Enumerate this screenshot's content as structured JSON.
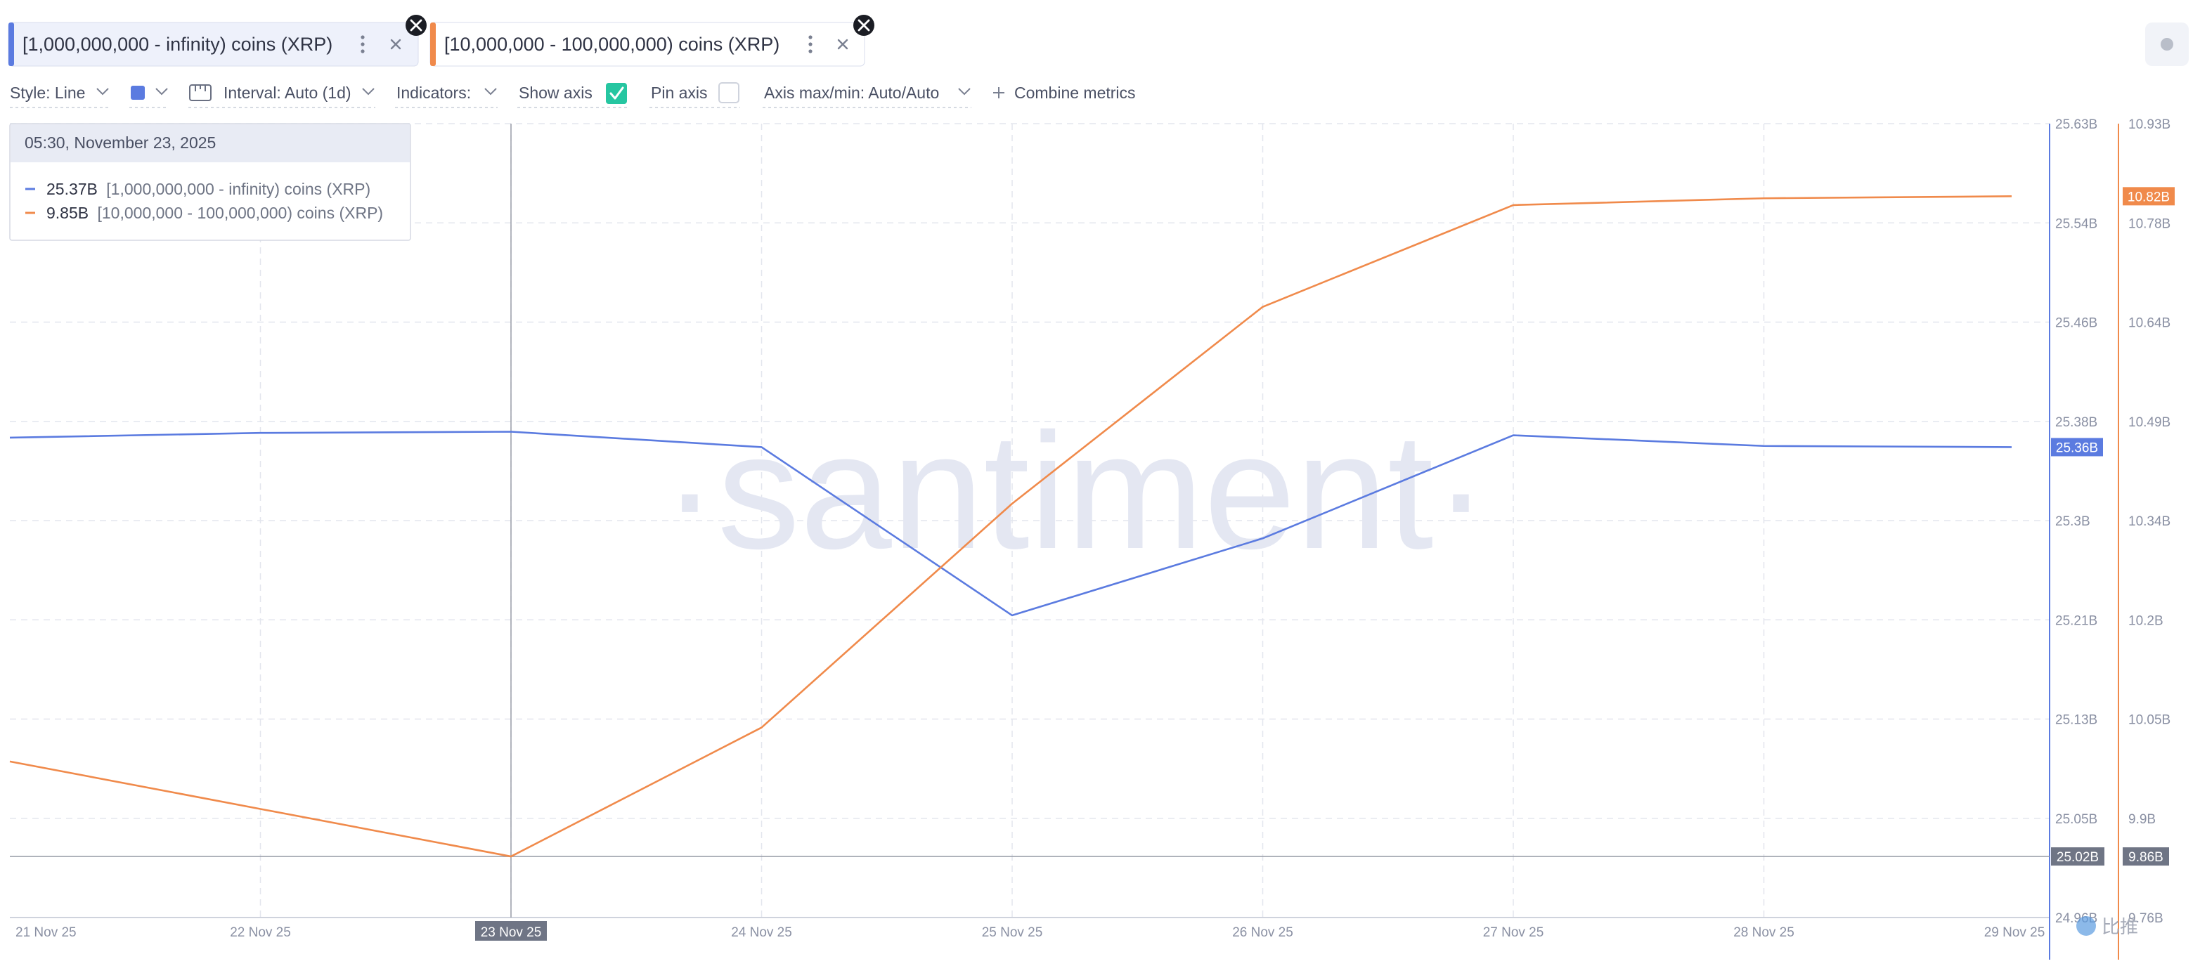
{
  "colors": {
    "series_1": "#5b7be0",
    "series_2": "#f08a4b",
    "watermark": "#e4e7f2",
    "grid": "#e3e6ee",
    "crosshair": "#9a9ea8",
    "label_dark": "#6f7585",
    "check_green": "#26c6a1"
  },
  "metric_chips": [
    {
      "label": "[1,000,000,000 - infinity) coins (XRP)",
      "more_icon": "kebab-icon",
      "close_icon": "close-icon"
    },
    {
      "label": "[10,000,000 - 100,000,000) coins (XRP)",
      "more_icon": "kebab-icon",
      "close_icon": "close-icon"
    }
  ],
  "toolbar": {
    "style_label": "Style: Line",
    "interval_label": "Interval: Auto (1d)",
    "indicators_label": "Indicators:",
    "show_axis_label": "Show axis",
    "show_axis_checked": true,
    "pin_axis_label": "Pin axis",
    "pin_axis_checked": false,
    "axis_maxmin_label": "Axis max/min: Auto/Auto",
    "combine_label": "Combine metrics",
    "combine_icon": "plus-icon"
  },
  "tooltip": {
    "date": "05:30, November 23, 2025",
    "rows": [
      {
        "value": "25.37B",
        "name": "[1,000,000,000 - infinity) coins (XRP)"
      },
      {
        "value": "9.85B",
        "name": "[10,000,000 - 100,000,000) coins (XRP)"
      }
    ]
  },
  "watermark": "·santiment·",
  "chart_data": {
    "type": "line",
    "x": [
      "21 Nov 25",
      "22 Nov 25",
      "23 Nov 25",
      "24 Nov 25",
      "25 Nov 25",
      "26 Nov 25",
      "27 Nov 25",
      "28 Nov 25",
      "29 Nov 25"
    ],
    "series": [
      {
        "name": "[1,000,000,000 - infinity) coins (XRP)",
        "axis": "left",
        "values": [
          25.365,
          25.369,
          25.37,
          25.357,
          25.215,
          25.28,
          25.367,
          25.358,
          25.357
        ]
      },
      {
        "name": "[10,000,000 - 100,000,000) coins (XRP)",
        "axis": "right",
        "values": [
          9.99,
          9.92,
          9.85,
          10.04,
          10.37,
          10.66,
          10.81,
          10.82,
          10.823
        ]
      }
    ],
    "y_left_ticks": [
      "25.63B",
      "25.54B",
      "25.46B",
      "25.38B",
      "25.3B",
      "25.21B",
      "25.13B",
      "25.05B",
      "24.96B"
    ],
    "y_right_ticks": [
      "10.93B",
      "10.78B",
      "10.64B",
      "10.49B",
      "10.34B",
      "10.2B",
      "10.05B",
      "9.9B",
      "9.76B"
    ],
    "ylim_left": [
      24.96,
      25.63
    ],
    "ylim_right": [
      9.76,
      10.93
    ],
    "last_value_labels": {
      "left": "25.36B",
      "right": "10.82B"
    },
    "crosshair": {
      "x_label": "23 Nov 25",
      "y_left_label": "25.02B",
      "y_right_label": "9.86B"
    },
    "grid": true
  },
  "corner_watermark": "比推"
}
